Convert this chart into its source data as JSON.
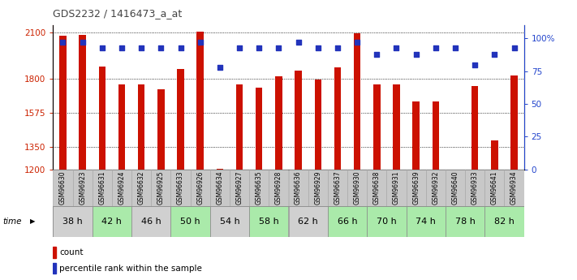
{
  "title": "GDS2232 / 1416473_a_at",
  "samples": [
    "GSM96630",
    "GSM96923",
    "GSM96631",
    "GSM96924",
    "GSM96632",
    "GSM96925",
    "GSM96633",
    "GSM96926",
    "GSM96634",
    "GSM96927",
    "GSM96635",
    "GSM96928",
    "GSM96636",
    "GSM96929",
    "GSM96637",
    "GSM96930",
    "GSM96638",
    "GSM96931",
    "GSM96639",
    "GSM96932",
    "GSM96640",
    "GSM96933",
    "GSM96641",
    "GSM96934"
  ],
  "counts": [
    2080,
    2085,
    1880,
    1760,
    1760,
    1730,
    1860,
    2105,
    1205,
    1760,
    1740,
    1815,
    1850,
    1790,
    1870,
    2095,
    1760,
    1760,
    1650,
    1650,
    1200,
    1750,
    1390,
    1820
  ],
  "percentile_ranks": [
    97,
    97,
    93,
    93,
    93,
    93,
    93,
    97,
    78,
    93,
    93,
    93,
    97,
    93,
    93,
    97,
    88,
    93,
    88,
    93,
    93,
    80,
    88,
    93
  ],
  "time_groups": [
    {
      "label": "38 h",
      "start": 0,
      "end": 2,
      "color": "#d0d0d0"
    },
    {
      "label": "42 h",
      "start": 2,
      "end": 4,
      "color": "#aaeaaa"
    },
    {
      "label": "46 h",
      "start": 4,
      "end": 6,
      "color": "#d0d0d0"
    },
    {
      "label": "50 h",
      "start": 6,
      "end": 8,
      "color": "#aaeaaa"
    },
    {
      "label": "54 h",
      "start": 8,
      "end": 10,
      "color": "#d0d0d0"
    },
    {
      "label": "58 h",
      "start": 10,
      "end": 12,
      "color": "#aaeaaa"
    },
    {
      "label": "62 h",
      "start": 12,
      "end": 14,
      "color": "#d0d0d0"
    },
    {
      "label": "66 h",
      "start": 14,
      "end": 16,
      "color": "#aaeaaa"
    },
    {
      "label": "70 h",
      "start": 16,
      "end": 18,
      "color": "#aaeaaa"
    },
    {
      "label": "74 h",
      "start": 18,
      "end": 20,
      "color": "#aaeaaa"
    },
    {
      "label": "78 h",
      "start": 20,
      "end": 22,
      "color": "#aaeaaa"
    },
    {
      "label": "82 h",
      "start": 22,
      "end": 24,
      "color": "#aaeaaa"
    }
  ],
  "ylim_left": [
    1200,
    2150
  ],
  "yticks_left": [
    1200,
    1350,
    1575,
    1800,
    2100
  ],
  "ylim_right": [
    0,
    110
  ],
  "yticks_right": [
    0,
    25,
    50,
    75,
    100
  ],
  "bar_color": "#cc1100",
  "dot_color": "#2233bb",
  "bar_width": 0.35,
  "bg_color": "#ffffff",
  "label_color_left": "#cc2200",
  "label_color_right": "#2244cc",
  "gray_color": "#c8c8c8",
  "sample_edge_color": "#aaaaaa"
}
